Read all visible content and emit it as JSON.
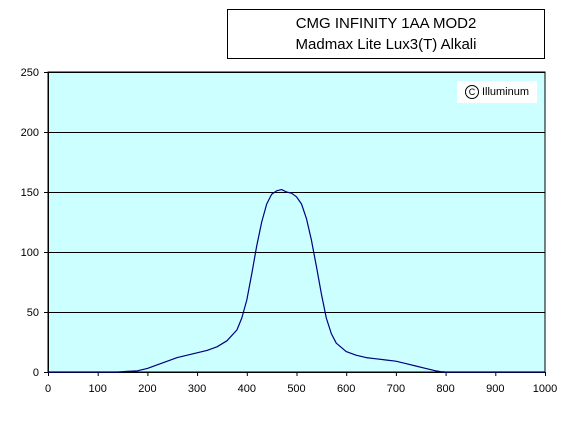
{
  "chart_data": {
    "type": "line",
    "title": "CMG INFINITY 1AA MOD2",
    "subtitle": "Madmax Lite Lux3(T) Alkali",
    "watermark": "Illuminum",
    "watermark_symbol": "C",
    "xlim": [
      0,
      1000
    ],
    "ylim": [
      0,
      250
    ],
    "x_ticks": [
      0,
      100,
      200,
      300,
      400,
      500,
      600,
      700,
      800,
      900,
      1000
    ],
    "y_ticks": [
      0,
      50,
      100,
      150,
      200,
      250
    ],
    "grid": "horizontal",
    "plot_background": "#ccffff",
    "line_color": "#000080",
    "series": [
      {
        "x": [
          0,
          140,
          160,
          180,
          200,
          220,
          240,
          260,
          280,
          300,
          320,
          340,
          360,
          380,
          390,
          400,
          410,
          420,
          430,
          440,
          450,
          460,
          470,
          480,
          490,
          500,
          510,
          520,
          530,
          540,
          550,
          560,
          570,
          580,
          600,
          620,
          640,
          660,
          680,
          700,
          720,
          740,
          760,
          780,
          790,
          800,
          850,
          1000
        ],
        "y": [
          0,
          0,
          0.5,
          1,
          3,
          6,
          9,
          12,
          14,
          16,
          18,
          21,
          26,
          35,
          45,
          60,
          82,
          105,
          125,
          140,
          148,
          151,
          152,
          150,
          149,
          146,
          140,
          128,
          110,
          88,
          65,
          45,
          32,
          24,
          17,
          14,
          12,
          11,
          10,
          9,
          7,
          5,
          3,
          1,
          0.3,
          0,
          0,
          0
        ]
      }
    ]
  }
}
